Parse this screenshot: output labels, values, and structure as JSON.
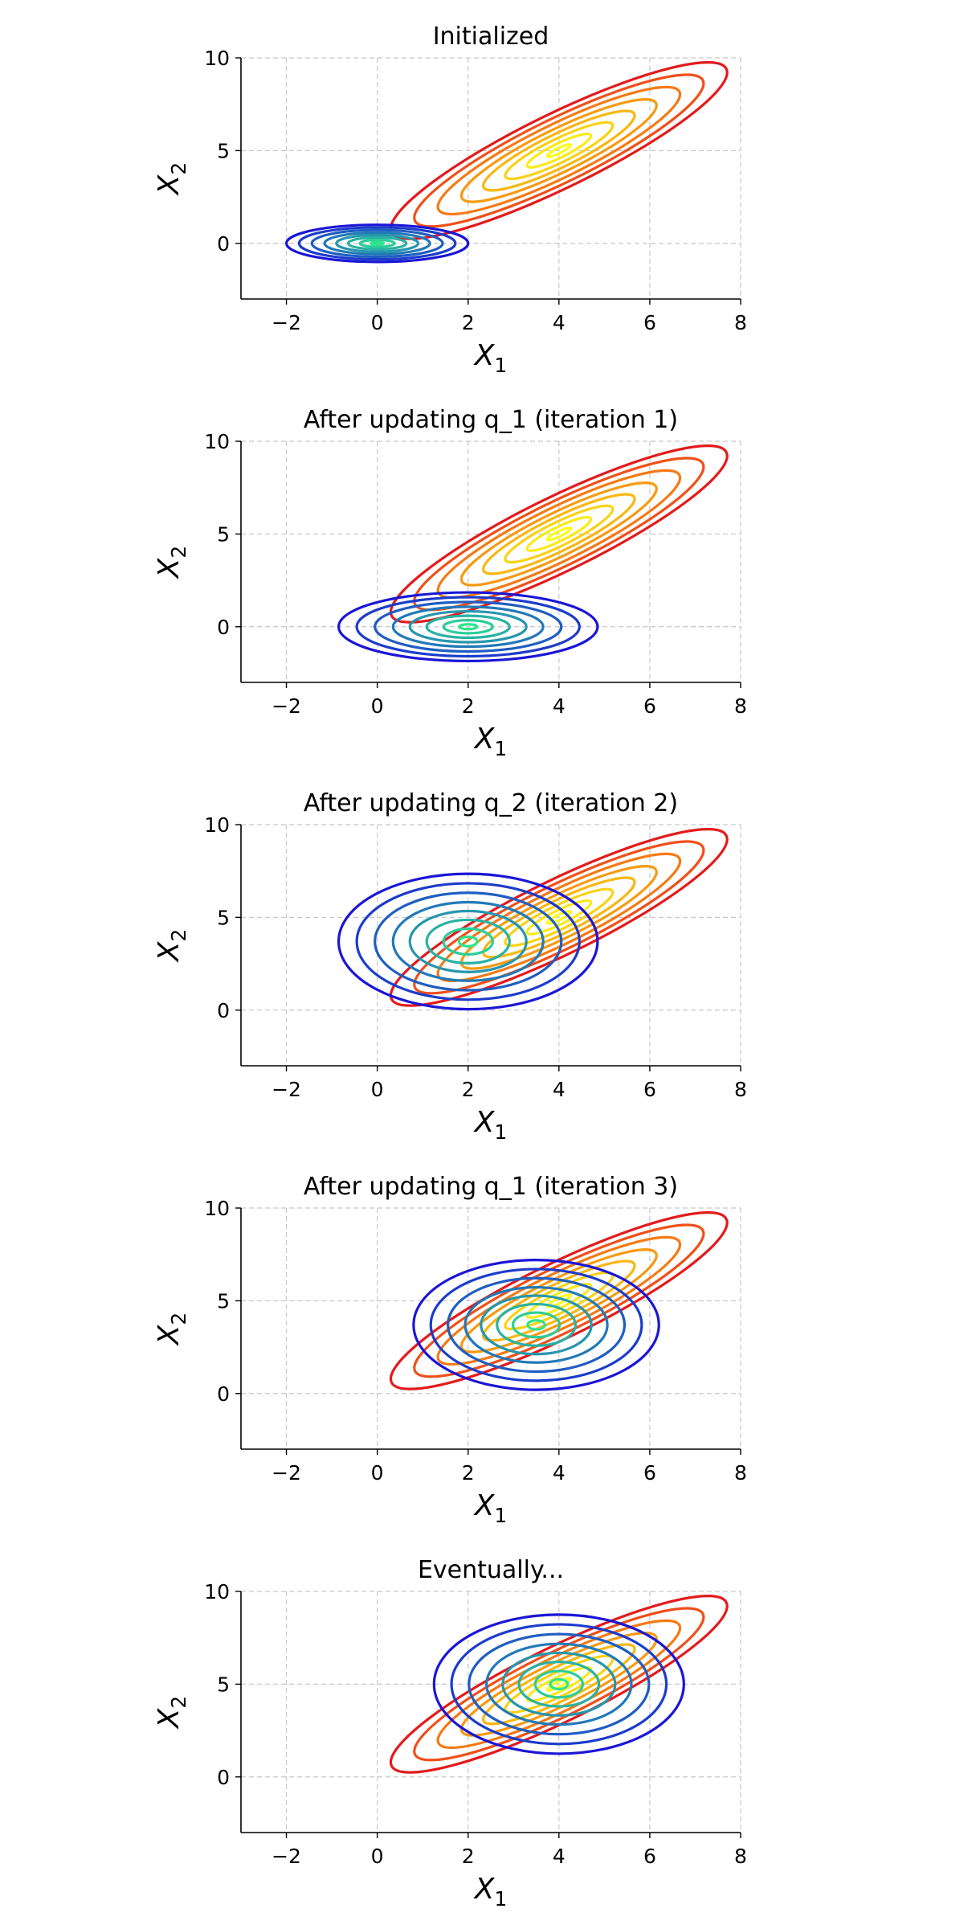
{
  "figure": {
    "xlabel": "X",
    "xlabel_sub": "1",
    "ylabel": "X",
    "ylabel_sub": "2"
  },
  "chart_data": [
    {
      "type": "contour",
      "title": "Initialized",
      "xlim": [
        -3,
        8
      ],
      "ylim": [
        -3,
        10
      ],
      "xticks": [
        -2,
        0,
        2,
        4,
        6,
        8
      ],
      "yticks": [
        0,
        5,
        10
      ],
      "grid": true,
      "series": [
        {
          "cx": 4.0,
          "cy": 5.0,
          "angle_deg": 26,
          "a": 4.1,
          "b": 2.0,
          "palette": "autumn"
        },
        {
          "cx": 0.0,
          "cy": 0.0,
          "angle_deg": 0,
          "a": 2.0,
          "b": 1.0,
          "palette": "winter"
        }
      ]
    },
    {
      "type": "contour",
      "title": "After updating q_1 (iteration 1)",
      "xlim": [
        -3,
        8
      ],
      "ylim": [
        -3,
        10
      ],
      "xticks": [
        -2,
        0,
        2,
        4,
        6,
        8
      ],
      "yticks": [
        0,
        5,
        10
      ],
      "grid": true,
      "series": [
        {
          "cx": 4.0,
          "cy": 5.0,
          "angle_deg": 26,
          "a": 4.1,
          "b": 2.0,
          "palette": "autumn"
        },
        {
          "cx": 2.0,
          "cy": 0.0,
          "angle_deg": 0,
          "a": 2.85,
          "b": 1.85,
          "palette": "winter"
        }
      ]
    },
    {
      "type": "contour",
      "title": "After updating q_2 (iteration 2)",
      "xlim": [
        -3,
        8
      ],
      "ylim": [
        -3,
        10
      ],
      "xticks": [
        -2,
        0,
        2,
        4,
        6,
        8
      ],
      "yticks": [
        0,
        5,
        10
      ],
      "grid": true,
      "series": [
        {
          "cx": 4.0,
          "cy": 5.0,
          "angle_deg": 26,
          "a": 4.1,
          "b": 2.0,
          "palette": "autumn"
        },
        {
          "cx": 2.0,
          "cy": 3.7,
          "angle_deg": 0,
          "a": 2.85,
          "b": 3.65,
          "palette": "winter"
        }
      ]
    },
    {
      "type": "contour",
      "title": "After updating q_1 (iteration 3)",
      "xlim": [
        -3,
        8
      ],
      "ylim": [
        -3,
        10
      ],
      "xticks": [
        -2,
        0,
        2,
        4,
        6,
        8
      ],
      "yticks": [
        0,
        5,
        10
      ],
      "grid": true,
      "series": [
        {
          "cx": 4.0,
          "cy": 5.0,
          "angle_deg": 26,
          "a": 4.1,
          "b": 2.0,
          "palette": "autumn"
        },
        {
          "cx": 3.5,
          "cy": 3.7,
          "angle_deg": 0,
          "a": 2.7,
          "b": 3.5,
          "palette": "winter"
        }
      ]
    },
    {
      "type": "contour",
      "title": "Eventually...",
      "xlim": [
        -3,
        8
      ],
      "ylim": [
        -3,
        10
      ],
      "xticks": [
        -2,
        0,
        2,
        4,
        6,
        8
      ],
      "yticks": [
        0,
        5,
        10
      ],
      "grid": true,
      "series": [
        {
          "cx": 4.0,
          "cy": 5.0,
          "angle_deg": 26,
          "a": 4.1,
          "b": 2.0,
          "palette": "autumn"
        },
        {
          "cx": 4.0,
          "cy": 5.0,
          "angle_deg": 0,
          "a": 2.75,
          "b": 3.75,
          "palette": "winter"
        }
      ]
    }
  ],
  "palettes": {
    "autumn": [
      "#e41a1c",
      "#f0501a",
      "#f57a14",
      "#f79a12",
      "#f9b713",
      "#fad214",
      "#fbea16",
      "#fdfc1a"
    ],
    "winter": [
      "#1a16d6",
      "#1c3ccb",
      "#1f5dc2",
      "#2279b8",
      "#2696ad",
      "#29b2a3",
      "#2ccd99",
      "#2fe48f"
    ]
  },
  "contour_levels": [
    1.0,
    0.86,
    0.72,
    0.58,
    0.45,
    0.32,
    0.19,
    0.07
  ]
}
